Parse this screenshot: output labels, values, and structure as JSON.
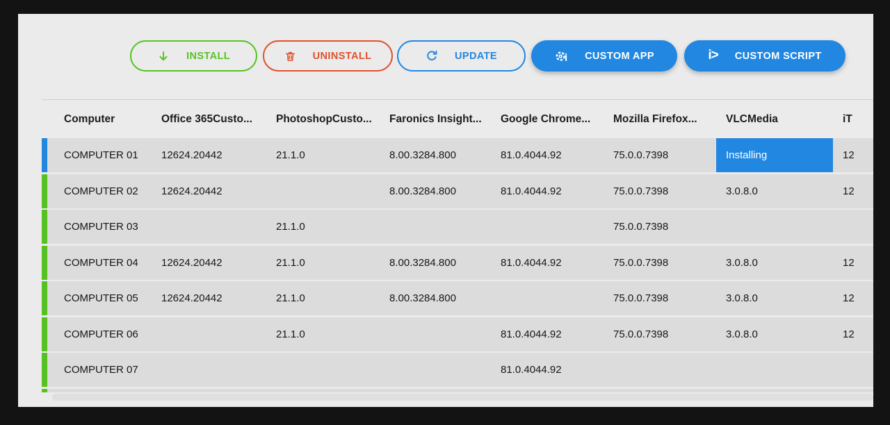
{
  "toolbar": {
    "install": "INSTALL",
    "uninstall": "UNINSTALL",
    "update": "UPDATE",
    "custom_app": "CUSTOM APP",
    "custom_script": "CUSTOM SCRIPT",
    "custom_script_glyph": "i>"
  },
  "colors": {
    "install_green": "#58c322",
    "uninstall_red": "#e2512a",
    "accent_blue": "#2287e1",
    "row_gray": "#dcdcdc",
    "page_bg": "#ebebeb",
    "frame": "#131313"
  },
  "table": {
    "columns": [
      "Computer",
      "Office 365Custo...",
      "PhotoshopCusto...",
      "Faronics Insight...",
      "Google Chrome...",
      "Mozilla Firefox...",
      "VLCMedia",
      "iT"
    ],
    "rows": [
      {
        "indicator": "blue",
        "status_cell_index": 6,
        "partial": false,
        "cells": [
          "COMPUTER 01",
          "12624.20442",
          "21.1.0",
          "8.00.3284.800",
          "81.0.4044.92",
          "75.0.0.7398",
          "Installing",
          "12"
        ]
      },
      {
        "indicator": "green",
        "status_cell_index": null,
        "partial": false,
        "cells": [
          "COMPUTER 02",
          "12624.20442",
          "",
          "8.00.3284.800",
          "81.0.4044.92",
          "75.0.0.7398",
          "3.0.8.0",
          "12"
        ]
      },
      {
        "indicator": "green",
        "status_cell_index": null,
        "partial": false,
        "cells": [
          "COMPUTER 03",
          "",
          "21.1.0",
          "",
          "",
          "75.0.0.7398",
          "",
          ""
        ]
      },
      {
        "indicator": "green",
        "status_cell_index": null,
        "partial": false,
        "cells": [
          "COMPUTER 04",
          "12624.20442",
          "21.1.0",
          "8.00.3284.800",
          "81.0.4044.92",
          "75.0.0.7398",
          "3.0.8.0",
          "12"
        ]
      },
      {
        "indicator": "green",
        "status_cell_index": null,
        "partial": false,
        "cells": [
          "COMPUTER 05",
          "12624.20442",
          "21.1.0",
          "8.00.3284.800",
          "",
          "75.0.0.7398",
          "3.0.8.0",
          "12"
        ]
      },
      {
        "indicator": "green",
        "status_cell_index": null,
        "partial": false,
        "cells": [
          "COMPUTER 06",
          "",
          "21.1.0",
          "",
          "81.0.4044.92",
          "75.0.0.7398",
          "3.0.8.0",
          "12"
        ]
      },
      {
        "indicator": "green",
        "status_cell_index": null,
        "partial": false,
        "cells": [
          "COMPUTER 07",
          "",
          "",
          "",
          "81.0.4044.92",
          "",
          "",
          ""
        ]
      },
      {
        "indicator": "green",
        "status_cell_index": null,
        "partial": true,
        "cells": [
          "",
          "",
          "",
          "",
          "",
          "",
          "",
          ""
        ]
      }
    ]
  }
}
